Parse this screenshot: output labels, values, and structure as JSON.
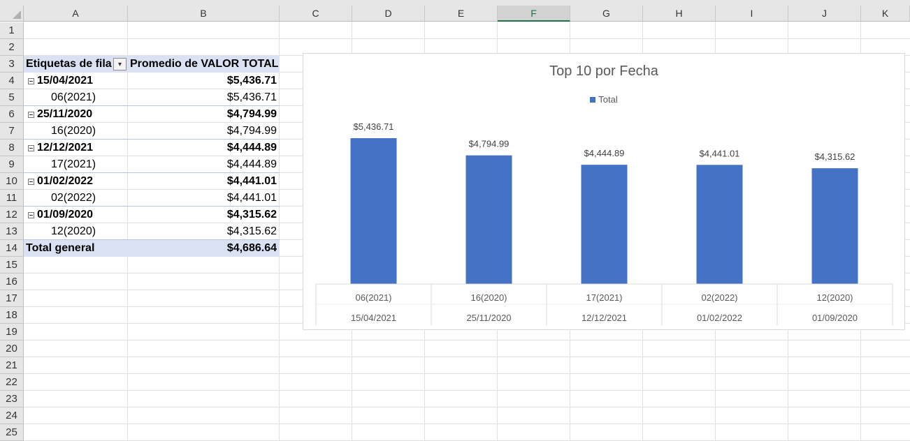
{
  "columns": [
    "A",
    "B",
    "C",
    "D",
    "E",
    "F",
    "G",
    "H",
    "I",
    "J",
    "K"
  ],
  "selected_column": "F",
  "rows": [
    "1",
    "2",
    "3",
    "4",
    "5",
    "6",
    "7",
    "8",
    "9",
    "10",
    "11",
    "12",
    "13",
    "14",
    "15",
    "16",
    "17",
    "18",
    "19",
    "20",
    "21",
    "22",
    "23",
    "24",
    "25"
  ],
  "pivot": {
    "header_label": "Etiquetas de fila",
    "header_value": "Promedio de VALOR TOTAL",
    "items": [
      {
        "date": "15/04/2021",
        "value": "$5,436.71",
        "child_label": "06(2021)",
        "child_value": "$5,436.71"
      },
      {
        "date": "25/11/2020",
        "value": "$4,794.99",
        "child_label": "16(2020)",
        "child_value": "$4,794.99"
      },
      {
        "date": "12/12/2021",
        "value": "$4,444.89",
        "child_label": "17(2021)",
        "child_value": "$4,444.89"
      },
      {
        "date": "01/02/2022",
        "value": "$4,441.01",
        "child_label": "02(2022)",
        "child_value": "$4,441.01"
      },
      {
        "date": "01/09/2020",
        "value": "$4,315.62",
        "child_label": "12(2020)",
        "child_value": "$4,315.62"
      }
    ],
    "total_label": "Total general",
    "total_value": "$4,686.64"
  },
  "colors": {
    "bar": "#4472c4",
    "header_band": "#d9e1f2",
    "selected_col": "#217346"
  },
  "chart_data": {
    "type": "bar",
    "title": "Top 10 por Fecha",
    "legend": "top",
    "categories": [
      "06(2021)",
      "16(2020)",
      "17(2021)",
      "02(2022)",
      "12(2020)"
    ],
    "categories_outer": [
      "15/04/2021",
      "25/11/2020",
      "12/12/2021",
      "01/02/2022",
      "01/09/2020"
    ],
    "series": [
      {
        "name": "Total",
        "values": [
          5436.71,
          4794.99,
          4444.89,
          4441.01,
          4315.62
        ]
      }
    ],
    "data_labels": [
      "$5,436.71",
      "$4,794.99",
      "$4,444.89",
      "$4,441.01",
      "$4,315.62"
    ],
    "ylim": [
      0,
      6000
    ],
    "grid": false
  }
}
